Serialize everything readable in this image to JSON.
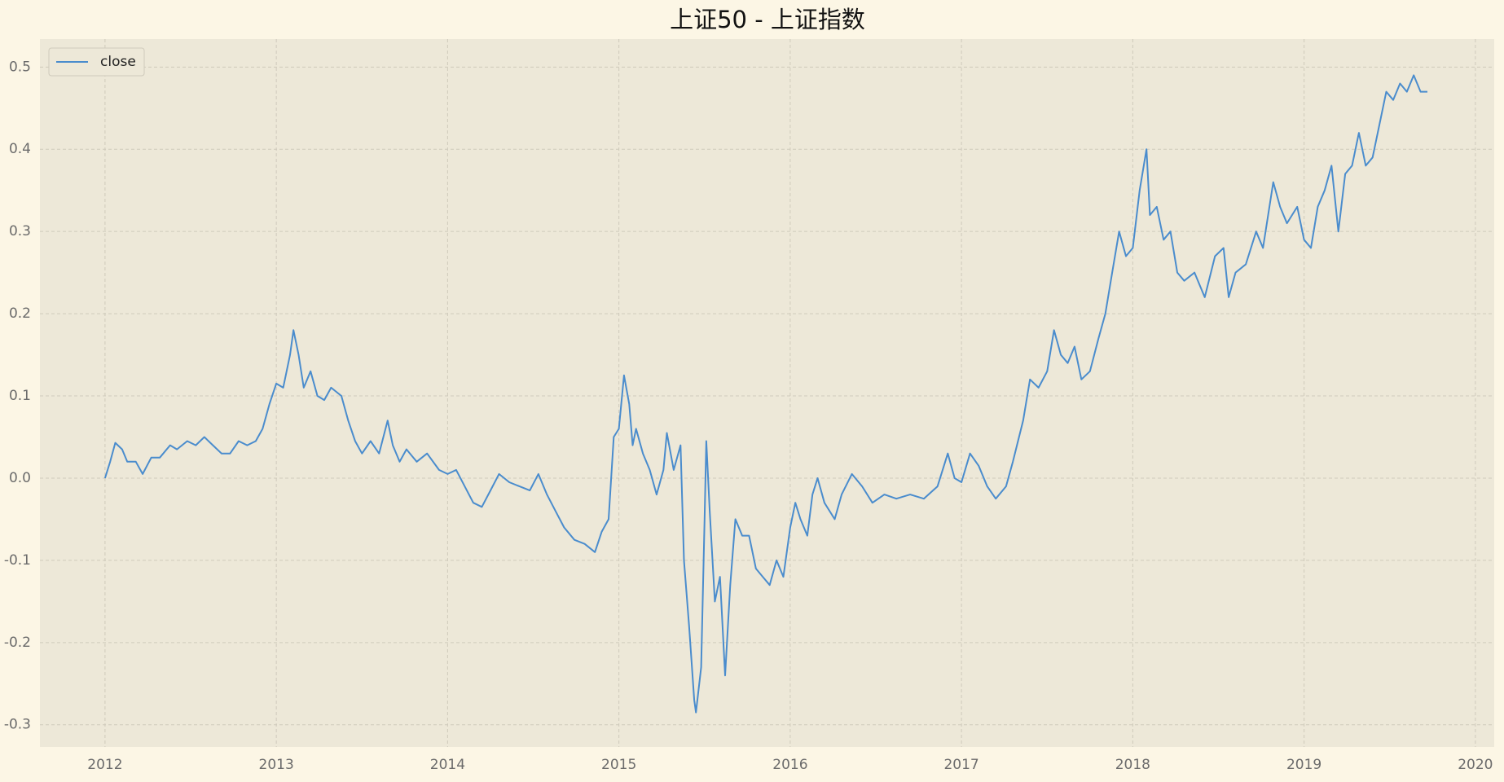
{
  "chart_data": {
    "type": "line",
    "title": "上证50 - 上证指数",
    "x": [
      2012.0,
      2012.03,
      2012.06,
      2012.1,
      2012.13,
      2012.18,
      2012.22,
      2012.27,
      2012.32,
      2012.38,
      2012.42,
      2012.48,
      2012.53,
      2012.58,
      2012.63,
      2012.68,
      2012.73,
      2012.78,
      2012.83,
      2012.88,
      2012.92,
      2012.96,
      2013.0,
      2013.04,
      2013.08,
      2013.1,
      2013.13,
      2013.16,
      2013.2,
      2013.24,
      2013.28,
      2013.32,
      2013.38,
      2013.42,
      2013.46,
      2013.5,
      2013.55,
      2013.6,
      2013.65,
      2013.68,
      2013.72,
      2013.76,
      2013.82,
      2013.88,
      2013.95,
      2014.0,
      2014.05,
      2014.1,
      2014.15,
      2014.2,
      2014.25,
      2014.3,
      2014.36,
      2014.42,
      2014.48,
      2014.53,
      2014.58,
      2014.63,
      2014.68,
      2014.74,
      2014.8,
      2014.86,
      2014.9,
      2014.94,
      2014.97,
      2015.0,
      2015.03,
      2015.06,
      2015.08,
      2015.1,
      2015.14,
      2015.18,
      2015.22,
      2015.26,
      2015.28,
      2015.32,
      2015.36,
      2015.38,
      2015.41,
      2015.44,
      2015.45,
      2015.48,
      2015.5,
      2015.51,
      2015.53,
      2015.56,
      2015.59,
      2015.62,
      2015.65,
      2015.68,
      2015.72,
      2015.76,
      2015.8,
      2015.84,
      2015.88,
      2015.92,
      2015.96,
      2016.0,
      2016.03,
      2016.06,
      2016.1,
      2016.13,
      2016.16,
      2016.2,
      2016.26,
      2016.3,
      2016.36,
      2016.42,
      2016.48,
      2016.55,
      2016.62,
      2016.7,
      2016.78,
      2016.86,
      2016.92,
      2016.96,
      2017.0,
      2017.05,
      2017.1,
      2017.15,
      2017.2,
      2017.26,
      2017.3,
      2017.36,
      2017.4,
      2017.45,
      2017.5,
      2017.54,
      2017.58,
      2017.62,
      2017.66,
      2017.7,
      2017.75,
      2017.8,
      2017.84,
      2017.88,
      2017.92,
      2017.96,
      2018.0,
      2018.04,
      2018.08,
      2018.1,
      2018.14,
      2018.18,
      2018.22,
      2018.26,
      2018.3,
      2018.36,
      2018.42,
      2018.48,
      2018.53,
      2018.56,
      2018.6,
      2018.66,
      2018.72,
      2018.76,
      2018.82,
      2018.86,
      2018.9,
      2018.96,
      2019.0,
      2019.04,
      2019.08,
      2019.12,
      2019.16,
      2019.2,
      2019.24,
      2019.28,
      2019.32,
      2019.36,
      2019.4,
      2019.44,
      2019.48,
      2019.52,
      2019.56,
      2019.6,
      2019.64,
      2019.68,
      2019.72
    ],
    "series": [
      {
        "name": "close",
        "color": "#4a8ccd",
        "values": [
          0.0,
          0.02,
          0.043,
          0.035,
          0.02,
          0.02,
          0.005,
          0.025,
          0.025,
          0.04,
          0.035,
          0.045,
          0.04,
          0.05,
          0.04,
          0.03,
          0.03,
          0.045,
          0.04,
          0.045,
          0.06,
          0.09,
          0.115,
          0.11,
          0.15,
          0.18,
          0.15,
          0.11,
          0.13,
          0.1,
          0.095,
          0.11,
          0.1,
          0.07,
          0.045,
          0.03,
          0.045,
          0.03,
          0.07,
          0.04,
          0.02,
          0.035,
          0.02,
          0.03,
          0.01,
          0.005,
          0.01,
          -0.01,
          -0.03,
          -0.035,
          -0.015,
          0.005,
          -0.005,
          -0.01,
          -0.015,
          0.005,
          -0.02,
          -0.04,
          -0.06,
          -0.075,
          -0.08,
          -0.09,
          -0.065,
          -0.05,
          0.05,
          0.06,
          0.125,
          0.09,
          0.04,
          0.06,
          0.03,
          0.01,
          -0.02,
          0.01,
          0.055,
          0.01,
          0.04,
          -0.1,
          -0.18,
          -0.27,
          -0.285,
          -0.23,
          -0.05,
          0.045,
          -0.04,
          -0.15,
          -0.12,
          -0.24,
          -0.13,
          -0.05,
          -0.07,
          -0.07,
          -0.11,
          -0.12,
          -0.13,
          -0.1,
          -0.12,
          -0.06,
          -0.03,
          -0.05,
          -0.07,
          -0.02,
          0.0,
          -0.03,
          -0.05,
          -0.02,
          0.005,
          -0.01,
          -0.03,
          -0.02,
          -0.025,
          -0.02,
          -0.025,
          -0.01,
          0.03,
          0.0,
          -0.005,
          0.03,
          0.015,
          -0.01,
          -0.025,
          -0.01,
          0.02,
          0.07,
          0.12,
          0.11,
          0.13,
          0.18,
          0.15,
          0.14,
          0.16,
          0.12,
          0.13,
          0.17,
          0.2,
          0.25,
          0.3,
          0.27,
          0.28,
          0.35,
          0.4,
          0.32,
          0.33,
          0.29,
          0.3,
          0.25,
          0.24,
          0.25,
          0.22,
          0.27,
          0.28,
          0.22,
          0.25,
          0.26,
          0.3,
          0.28,
          0.36,
          0.33,
          0.31,
          0.33,
          0.29,
          0.28,
          0.33,
          0.35,
          0.38,
          0.3,
          0.37,
          0.38,
          0.42,
          0.38,
          0.39,
          0.43,
          0.47,
          0.46,
          0.48,
          0.47,
          0.49,
          0.47,
          0.47
        ]
      }
    ],
    "xlim": [
      2011.62,
      2020.11
    ],
    "xticks": [
      2012,
      2013,
      2014,
      2015,
      2016,
      2017,
      2018,
      2019,
      2020
    ],
    "ylim": [
      -0.327,
      0.534
    ],
    "yticks": [
      -0.3,
      -0.2,
      -0.1,
      {
        "value": 0,
        "label": "0.0"
      },
      0.1,
      0.2,
      0.3,
      0.4,
      0.5
    ],
    "grid": true,
    "legend": "upper left"
  }
}
